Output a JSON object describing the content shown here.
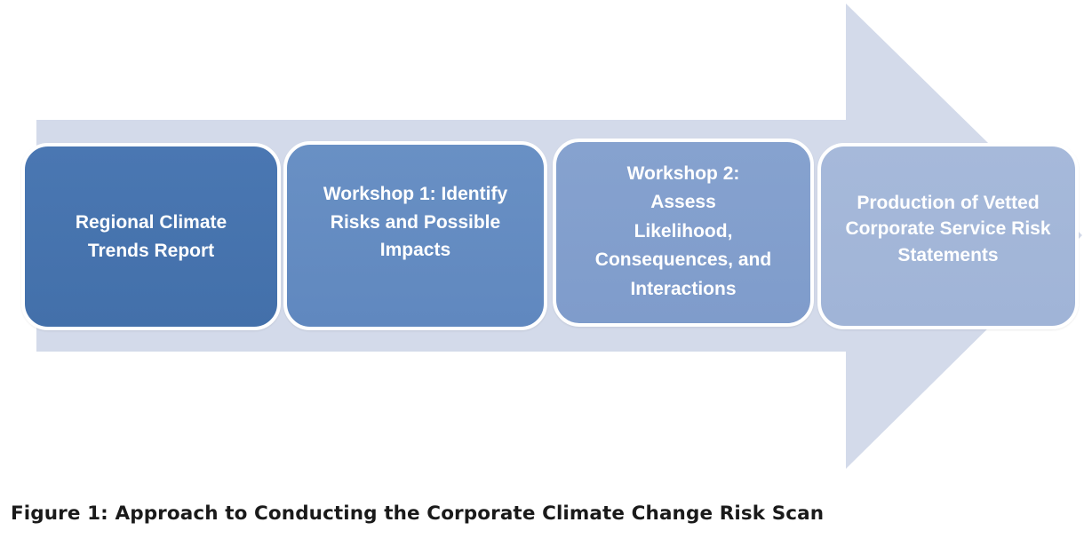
{
  "diagram": {
    "arrow_color": "#d3daea",
    "steps": [
      {
        "label": "Regional Climate\nTrends Report",
        "color": "#4571ac"
      },
      {
        "label": "Workshop 1: Identify\nRisks and Possible\nImpacts",
        "color": "#6389c1"
      },
      {
        "label": "Workshop 2:\nAssess\nLikelihood,\nConsequences, and\nInteractions",
        "color": "#839fcd"
      },
      {
        "label": "Production of Vetted\nCorporate Service Risk\nStatements",
        "color": "#a3b7d8"
      }
    ]
  },
  "caption": "Figure 1: Approach to Conducting the Corporate Climate Change Risk Scan"
}
